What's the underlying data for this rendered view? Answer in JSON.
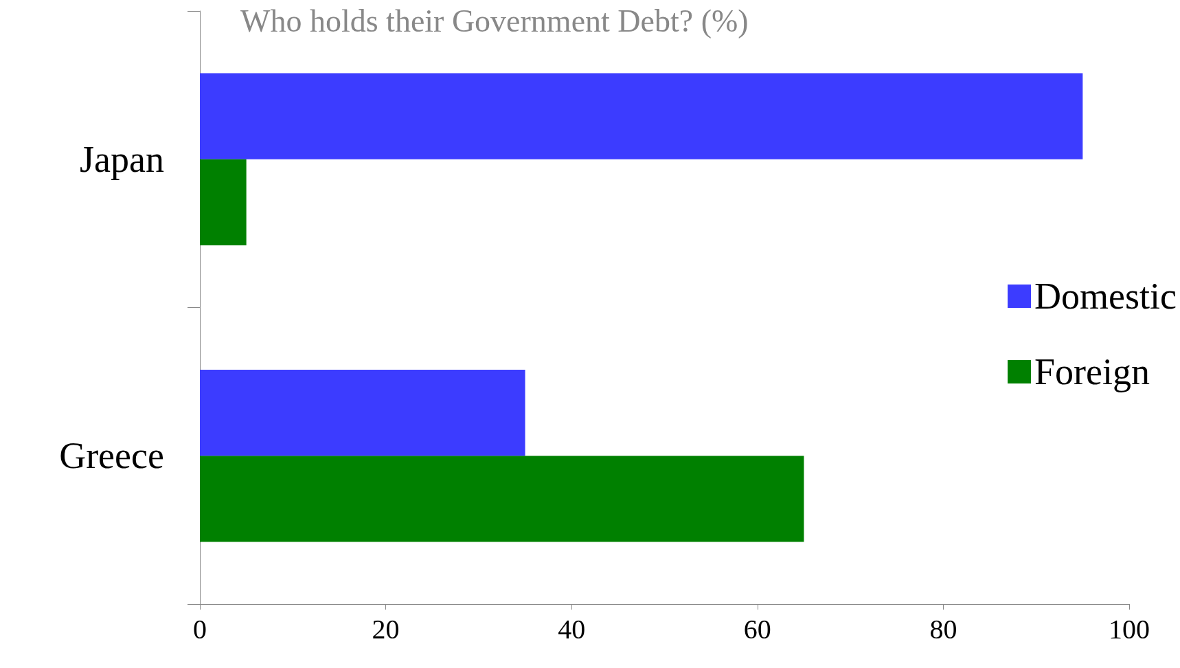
{
  "chart_data": {
    "type": "bar",
    "orientation": "horizontal",
    "title": "Who holds their Government Debt? (%)",
    "categories": [
      "Japan",
      "Greece"
    ],
    "series": [
      {
        "name": "Domestic",
        "color": "#3c3cff",
        "values": [
          95,
          35
        ]
      },
      {
        "name": "Foreign",
        "color": "#008000",
        "values": [
          5,
          65
        ]
      }
    ],
    "xlim": [
      0,
      100
    ],
    "xticks": [
      0,
      20,
      40,
      60,
      80,
      100
    ],
    "grid": false,
    "legend": "right"
  }
}
